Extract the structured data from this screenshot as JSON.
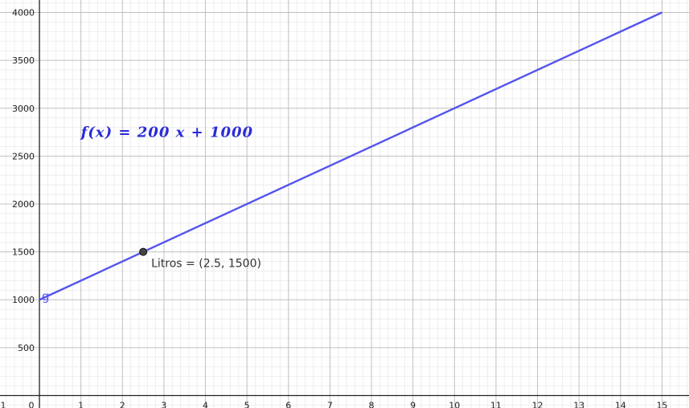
{
  "chart_data": {
    "type": "line",
    "x_ticks": [
      0,
      1,
      2,
      3,
      4,
      5,
      6,
      7,
      8,
      9,
      10,
      11,
      12,
      13,
      14,
      15
    ],
    "x_edge_label": "1",
    "y_ticks": [
      500,
      1000,
      1500,
      2000,
      2500,
      3000,
      3500,
      4000
    ],
    "xlim": [
      -0.95,
      15.65
    ],
    "ylim": [
      -130,
      4130
    ],
    "grid": true,
    "series": [
      {
        "name": "g",
        "color": "#5454f0",
        "x": [
          0,
          15
        ],
        "y": [
          1000,
          4000
        ]
      }
    ],
    "point": {
      "x": 2.5,
      "y": 1500,
      "label": "Litros = (2.5, 1500)"
    },
    "annotation": {
      "text": "f(x) = 200 x + 1000",
      "color": "#2b2bd6"
    }
  }
}
